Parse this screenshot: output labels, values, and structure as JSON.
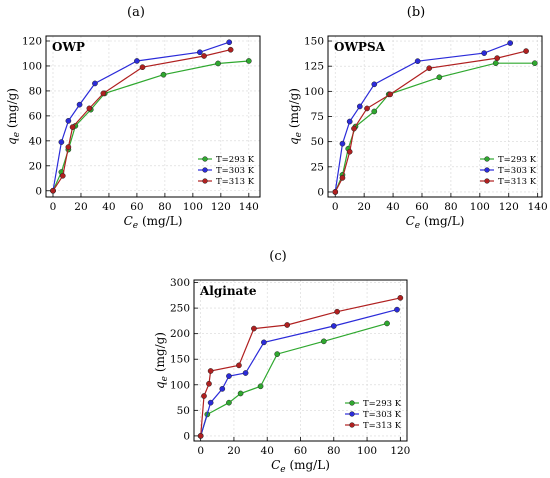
{
  "figure": {
    "legend_title": "",
    "colors": {
      "T293": "#2fa82f",
      "T303": "#2b2bd9",
      "T313": "#b02020"
    }
  },
  "chart_data": [
    {
      "panel_label": "(a)",
      "type": "line",
      "title": "OWP",
      "xlabel": "C_e (mg/L)",
      "ylabel": "q_e (mg/g)",
      "xlim": [
        -5,
        148
      ],
      "ylim": [
        -5,
        124
      ],
      "xticks": [
        0,
        20,
        40,
        60,
        80,
        100,
        120,
        140
      ],
      "yticks": [
        0,
        20,
        40,
        60,
        80,
        100,
        120
      ],
      "grid": true,
      "legend_position": "bottom-right",
      "series": [
        {
          "name": "T=293 K",
          "color": "#2fa82f",
          "points": [
            [
              0,
              0
            ],
            [
              6,
              15
            ],
            [
              11,
              33
            ],
            [
              16,
              52
            ],
            [
              27,
              65
            ],
            [
              37,
              78
            ],
            [
              79,
              93
            ],
            [
              118,
              102
            ],
            [
              140,
              104
            ]
          ]
        },
        {
          "name": "T=303 K",
          "color": "#2b2bd9",
          "points": [
            [
              0,
              0
            ],
            [
              6,
              39
            ],
            [
              11,
              56
            ],
            [
              19,
              69
            ],
            [
              30,
              86
            ],
            [
              60,
              104
            ],
            [
              105,
              111
            ],
            [
              126,
              119
            ]
          ]
        },
        {
          "name": "T=313 K",
          "color": "#b02020",
          "points": [
            [
              0,
              0
            ],
            [
              7,
              12
            ],
            [
              11,
              35
            ],
            [
              14,
              51
            ],
            [
              26,
              66
            ],
            [
              36,
              78
            ],
            [
              64,
              99
            ],
            [
              108,
              108
            ],
            [
              127,
              113
            ]
          ]
        }
      ]
    },
    {
      "panel_label": "(b)",
      "type": "line",
      "title": "OWPSA",
      "xlabel": "C_e (mg/L)",
      "ylabel": "q_e (mg/g)",
      "xlim": [
        -5,
        143
      ],
      "ylim": [
        -5,
        155
      ],
      "xticks": [
        0,
        20,
        40,
        60,
        80,
        100,
        120,
        140
      ],
      "yticks": [
        0,
        25,
        50,
        75,
        100,
        125,
        150
      ],
      "grid": true,
      "legend_position": "bottom-right",
      "series": [
        {
          "name": "T=293 K",
          "color": "#2fa82f",
          "points": [
            [
              0,
              0
            ],
            [
              5,
              17
            ],
            [
              9,
              43
            ],
            [
              14,
              65
            ],
            [
              27,
              80
            ],
            [
              37,
              97
            ],
            [
              72,
              114
            ],
            [
              111,
              128
            ],
            [
              138,
              128
            ]
          ]
        },
        {
          "name": "T=303 K",
          "color": "#2b2bd9",
          "points": [
            [
              0,
              0
            ],
            [
              5,
              48
            ],
            [
              10,
              70
            ],
            [
              17,
              85
            ],
            [
              27,
              107
            ],
            [
              57,
              130
            ],
            [
              103,
              138
            ],
            [
              121,
              148
            ]
          ]
        },
        {
          "name": "T=313 K",
          "color": "#b02020",
          "points": [
            [
              0,
              0
            ],
            [
              5,
              14
            ],
            [
              10,
              40
            ],
            [
              13,
              63
            ],
            [
              22,
              83
            ],
            [
              38,
              97
            ],
            [
              65,
              123
            ],
            [
              112,
              133
            ],
            [
              132,
              140
            ]
          ]
        }
      ]
    },
    {
      "panel_label": "(c)",
      "type": "line",
      "title": "Alginate",
      "xlabel": "C_e (mg/L)",
      "ylabel": "q_e (mg/g)",
      "xlim": [
        -4,
        124
      ],
      "ylim": [
        -10,
        305
      ],
      "xticks": [
        0,
        20,
        40,
        60,
        80,
        100,
        120
      ],
      "yticks": [
        0,
        50,
        100,
        150,
        200,
        250,
        300
      ],
      "grid": true,
      "legend_position": "bottom-right",
      "series": [
        {
          "name": "T=293 K",
          "color": "#2fa82f",
          "points": [
            [
              0,
              0
            ],
            [
              4,
              42
            ],
            [
              17,
              65
            ],
            [
              24,
              83
            ],
            [
              36,
              97
            ],
            [
              46,
              160
            ],
            [
              74,
              185
            ],
            [
              112,
              220
            ]
          ]
        },
        {
          "name": "T=303 K",
          "color": "#2b2bd9",
          "points": [
            [
              0,
              0
            ],
            [
              6,
              65
            ],
            [
              13,
              92
            ],
            [
              17,
              117
            ],
            [
              27,
              123
            ],
            [
              38,
              183
            ],
            [
              80,
              215
            ],
            [
              118,
              247
            ]
          ]
        },
        {
          "name": "T=313 K",
          "color": "#b02020",
          "points": [
            [
              0,
              0
            ],
            [
              2,
              78
            ],
            [
              5,
              102
            ],
            [
              6,
              127
            ],
            [
              23,
              138
            ],
            [
              32,
              210
            ],
            [
              52,
              217
            ],
            [
              82,
              243
            ],
            [
              120,
              270
            ]
          ]
        }
      ]
    }
  ]
}
